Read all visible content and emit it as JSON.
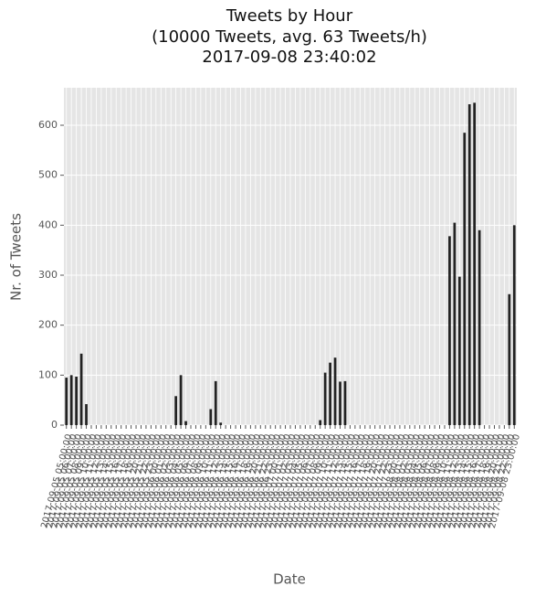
{
  "chart_data": {
    "type": "bar",
    "title": [
      "Tweets by Hour",
      "(10000 Tweets, avg. 63 Tweets/h)",
      "2017-09-08 23:40:02"
    ],
    "x_label": "Date",
    "y_label": "Nr. of Tweets",
    "categories": [
      "2017-09-05 05:00:00",
      "2017-09-05 06:00:00",
      "2017-09-05 07:00:00",
      "2017-09-05 08:00:00",
      "2017-09-05 09:00:00",
      "2017-09-05 10:00:00",
      "2017-09-05 11:00:00",
      "2017-09-05 12:00:00",
      "2017-09-05 13:00:00",
      "2017-09-05 14:00:00",
      "2017-09-05 15:00:00",
      "2017-09-05 16:00:00",
      "2017-09-05 17:00:00",
      "2017-09-05 18:00:00",
      "2017-09-05 19:00:00",
      "2017-09-05 20:00:00",
      "2017-09-05 21:00:00",
      "2017-09-05 22:00:00",
      "2017-09-05 23:00:00",
      "2017-09-06 00:00:00",
      "2017-09-06 01:00:00",
      "2017-09-06 02:00:00",
      "2017-09-06 03:00:00",
      "2017-09-06 04:00:00",
      "2017-09-06 05:00:00",
      "2017-09-06 06:00:00",
      "2017-09-06 07:00:00",
      "2017-09-06 08:00:00",
      "2017-09-06 09:00:00",
      "2017-09-06 10:00:00",
      "2017-09-06 11:00:00",
      "2017-09-06 12:00:00",
      "2017-09-06 13:00:00",
      "2017-09-06 14:00:00",
      "2017-09-06 15:00:00",
      "2017-09-06 16:00:00",
      "2017-09-06 17:00:00",
      "2017-09-06 18:00:00",
      "2017-09-06 19:00:00",
      "2017-09-06 20:00:00",
      "2017-09-06 21:00:00",
      "2017-09-06 22:00:00",
      "2017-09-06 23:00:00",
      "2017-09-07 00:00:00",
      "2017-09-07 01:00:00",
      "2017-09-07 02:00:00",
      "2017-09-07 03:00:00",
      "2017-09-07 04:00:00",
      "2017-09-07 05:00:00",
      "2017-09-07 06:00:00",
      "2017-09-07 07:00:00",
      "2017-09-07 08:00:00",
      "2017-09-07 09:00:00",
      "2017-09-07 10:00:00",
      "2017-09-07 11:00:00",
      "2017-09-07 12:00:00",
      "2017-09-07 13:00:00",
      "2017-09-07 14:00:00",
      "2017-09-07 15:00:00",
      "2017-09-07 16:00:00",
      "2017-09-07 17:00:00",
      "2017-09-07 18:00:00",
      "2017-09-07 19:00:00",
      "2017-09-07 20:00:00",
      "2017-09-07 21:00:00",
      "2017-09-07 22:00:00",
      "2017-09-07 23:00:00",
      "2017-09-08 00:00:00",
      "2017-09-08 01:00:00",
      "2017-09-08 02:00:00",
      "2017-09-08 03:00:00",
      "2017-09-08 04:00:00",
      "2017-09-08 05:00:00",
      "2017-09-08 06:00:00",
      "2017-09-08 07:00:00",
      "2017-09-08 08:00:00",
      "2017-09-08 09:00:00",
      "2017-09-08 10:00:00",
      "2017-09-08 11:00:00",
      "2017-09-08 12:00:00",
      "2017-09-08 13:00:00",
      "2017-09-08 14:00:00",
      "2017-09-08 15:00:00",
      "2017-09-08 16:00:00",
      "2017-09-08 17:00:00",
      "2017-09-08 18:00:00",
      "2017-09-08 19:00:00",
      "2017-09-08 20:00:00",
      "2017-09-08 21:00:00",
      "2017-09-08 22:00:00",
      "2017-09-08 23:00:00"
    ],
    "values": [
      95,
      100,
      97,
      143,
      42,
      0,
      0,
      0,
      0,
      0,
      0,
      0,
      0,
      0,
      0,
      0,
      0,
      0,
      0,
      0,
      0,
      0,
      58,
      100,
      8,
      0,
      0,
      0,
      0,
      32,
      88,
      5,
      0,
      0,
      0,
      0,
      0,
      0,
      0,
      0,
      0,
      0,
      0,
      0,
      0,
      0,
      0,
      0,
      0,
      0,
      0,
      10,
      105,
      125,
      135,
      87,
      88,
      0,
      0,
      0,
      0,
      0,
      0,
      0,
      0,
      0,
      0,
      0,
      0,
      0,
      0,
      0,
      0,
      0,
      0,
      0,
      0,
      378,
      405,
      297,
      585,
      642,
      645,
      390,
      0,
      0,
      0,
      0,
      0,
      262,
      400
    ],
    "color": "#222222",
    "ylim": [
      0,
      675
    ],
    "yticks": [
      0,
      100,
      200,
      300,
      400,
      500,
      600
    ],
    "grid": true
  }
}
